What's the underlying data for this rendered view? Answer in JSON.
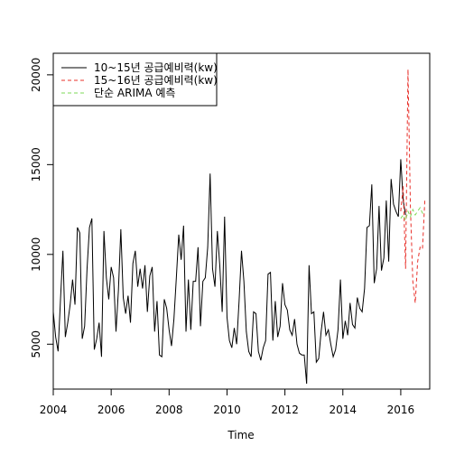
{
  "chart_data": {
    "type": "line",
    "title": "",
    "xlabel": "Time",
    "ylabel": "",
    "xlim": [
      2004,
      2017
    ],
    "ylim": [
      2500,
      21200
    ],
    "x_ticks": [
      2004,
      2006,
      2008,
      2010,
      2012,
      2014,
      2016
    ],
    "y_ticks": [
      5000,
      10000,
      15000,
      20000
    ],
    "legend_position": "top-left",
    "series": [
      {
        "name": "10~15년 공급예비력(kw)",
        "color": "#000000",
        "dash": "solid",
        "start": 2004.0,
        "step": 0.08333333,
        "values": [
          6800,
          5400,
          4600,
          7500,
          10200,
          5400,
          6200,
          7200,
          8600,
          7200,
          11500,
          11200,
          5300,
          6000,
          9200,
          11500,
          12000,
          4700,
          5300,
          6200,
          4300,
          11300,
          8700,
          7500,
          9300,
          8700,
          5700,
          8000,
          11400,
          7600,
          6700,
          7700,
          6200,
          9500,
          10200,
          8200,
          9200,
          8100,
          9400,
          6800,
          8800,
          9300,
          5700,
          7400,
          4400,
          4300,
          7500,
          7000,
          5800,
          4900,
          6400,
          8700,
          11100,
          9700,
          11600,
          5700,
          8600,
          5800,
          8500,
          8500,
          10400,
          6000,
          8500,
          8700,
          10400,
          14500,
          9200,
          8200,
          11300,
          9400,
          6800,
          12100,
          6500,
          5200,
          4800,
          5900,
          5000,
          7400,
          10200,
          8500,
          5700,
          4600,
          4300,
          6800,
          6700,
          4600,
          4100,
          4800,
          5200,
          8900,
          9000,
          5200,
          7400,
          5400,
          6000,
          8400,
          7200,
          6900,
          5800,
          5500,
          6400,
          5000,
          4500,
          4400,
          4400,
          2800,
          9400,
          6700,
          6800,
          4000,
          4200,
          5700,
          6800,
          5500,
          5800,
          5000,
          4300,
          4700,
          5800,
          8600,
          5300,
          6300,
          5500,
          7300,
          6100,
          5900,
          7600,
          7000,
          6800,
          8100,
          11500,
          11600,
          13900,
          8400,
          9200,
          12700,
          9100,
          9800,
          13000,
          9600,
          14200,
          12800,
          12400,
          12100,
          15300,
          13000,
          12200
        ]
      },
      {
        "name": "15~16년 공급예비력(kw)",
        "color": "#e8302a",
        "dash": "dashed",
        "start": 2016.0,
        "step": 0.08333333,
        "values": [
          12400,
          13800,
          9200,
          20300,
          12600,
          8500,
          7300,
          9600,
          10400,
          10300,
          13100
        ]
      },
      {
        "name": "단순 ARIMA 예측",
        "color": "#7ed957",
        "dash": "dashed",
        "start": 2016.0,
        "step": 0.08333333,
        "values": [
          12000,
          12200,
          11900,
          12400,
          12100,
          12500,
          12200,
          12400,
          12600,
          12300,
          12200
        ]
      }
    ]
  }
}
